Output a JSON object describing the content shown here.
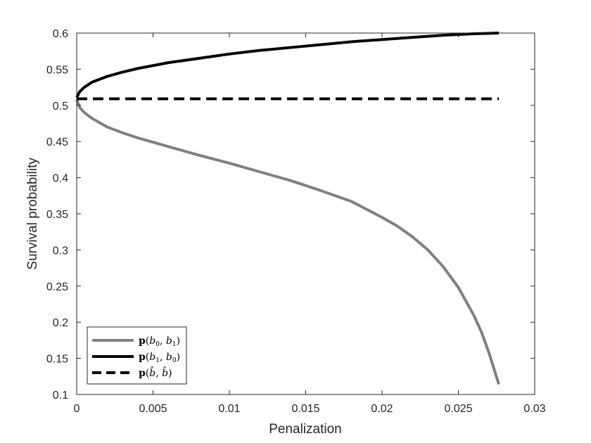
{
  "chart_data": {
    "type": "line",
    "title": "",
    "xlabel": "Penalization",
    "ylabel": "Survival probability",
    "xlim": [
      0,
      0.03
    ],
    "ylim": [
      0.1,
      0.6
    ],
    "xticks": [
      "0",
      "0.005",
      "0.01",
      "0.015",
      "0.02",
      "0.025",
      "0.03"
    ],
    "yticks": [
      "0.1",
      "0.15",
      "0.2",
      "0.25",
      "0.3",
      "0.35",
      "0.4",
      "0.45",
      "0.5",
      "0.55",
      "0.6"
    ],
    "grid": false,
    "legend_position": "bottom-left",
    "series": [
      {
        "name": "p(b0, b1)",
        "color": "#808080",
        "style": "solid",
        "x": [
          0,
          0.0002,
          0.0005,
          0.001,
          0.002,
          0.003,
          0.004,
          0.005,
          0.006,
          0.008,
          0.01,
          0.012,
          0.014,
          0.016,
          0.018,
          0.02,
          0.021,
          0.022,
          0.023,
          0.024,
          0.025,
          0.026,
          0.0265,
          0.027,
          0.02765
        ],
        "y": [
          0.508,
          0.497,
          0.49,
          0.482,
          0.47,
          0.462,
          0.455,
          0.449,
          0.443,
          0.431,
          0.42,
          0.408,
          0.396,
          0.382,
          0.367,
          0.345,
          0.333,
          0.318,
          0.3,
          0.277,
          0.248,
          0.21,
          0.187,
          0.158,
          0.114
        ]
      },
      {
        "name": "p(b1, b0)",
        "color": "#000000",
        "style": "solid",
        "x": [
          0,
          0.0002,
          0.0005,
          0.001,
          0.002,
          0.003,
          0.004,
          0.005,
          0.006,
          0.008,
          0.01,
          0.012,
          0.014,
          0.016,
          0.018,
          0.02,
          0.022,
          0.024,
          0.026,
          0.02765
        ],
        "y": [
          0.511,
          0.519,
          0.525,
          0.532,
          0.54,
          0.546,
          0.551,
          0.555,
          0.559,
          0.565,
          0.571,
          0.576,
          0.58,
          0.584,
          0.588,
          0.591,
          0.594,
          0.597,
          0.599,
          0.6
        ]
      },
      {
        "name": "p(b̂, b̂)",
        "color": "#000000",
        "style": "dashed",
        "x": [
          0,
          0.02765
        ],
        "y": [
          0.509,
          0.509
        ]
      }
    ],
    "legend": [
      {
        "p": "p",
        "open": "(",
        "a": "b",
        "asub": "0",
        "comma": ", ",
        "b": "b",
        "bsub": "1",
        "close": ")"
      },
      {
        "p": "p",
        "open": "(",
        "a": "b",
        "asub": "1",
        "comma": ", ",
        "b": "b",
        "bsub": "0",
        "close": ")"
      },
      {
        "p": "p",
        "open": "(",
        "a": "b̂",
        "asub": "",
        "comma": ", ",
        "b": "b̂",
        "bsub": "",
        "close": ")"
      }
    ]
  }
}
